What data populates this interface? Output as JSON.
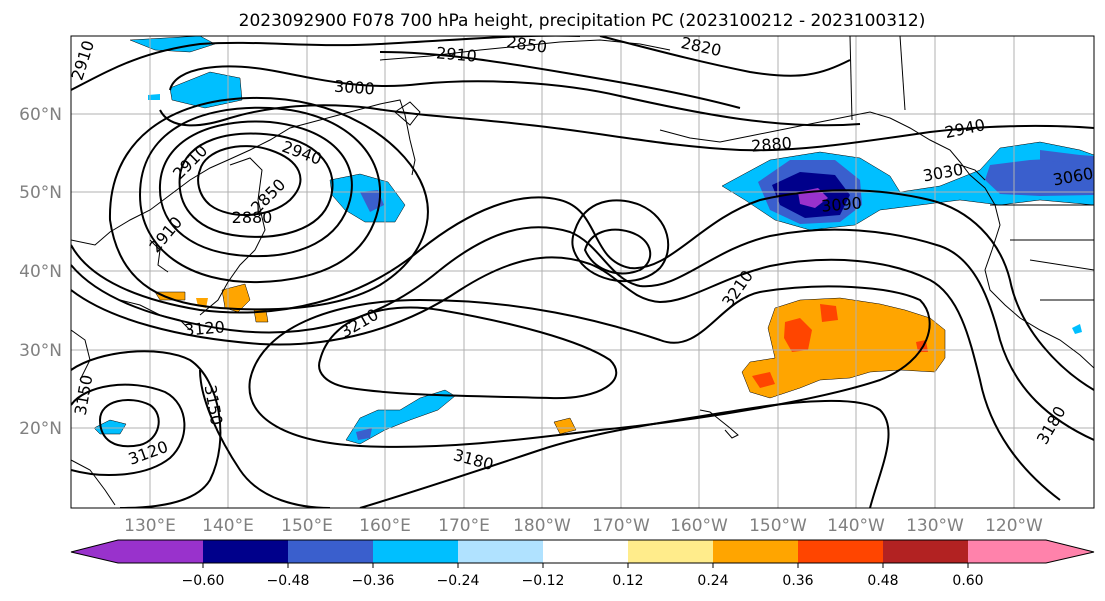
{
  "title": "2023092900 F078 700 hPa height, precipitation PC (2023100212 - 2023100312)",
  "lon_labels": [
    "130°E",
    "140°E",
    "150°E",
    "160°E",
    "170°E",
    "180°W",
    "170°W",
    "160°W",
    "150°W",
    "140°W",
    "130°W",
    "120°W"
  ],
  "lat_labels": [
    "60°N",
    "50°N",
    "40°N",
    "30°N",
    "20°N"
  ],
  "colorbar": {
    "colors": [
      "#9932cc",
      "#00008b",
      "#3a5fcd",
      "#00bfff",
      "#b0e2ff",
      "#ffffff",
      "#ffec8b",
      "#ffa500",
      "#ff4500",
      "#b22222",
      "#ff82ab"
    ],
    "tick_labels": [
      "−0.60",
      "−0.48",
      "−0.36",
      "−0.24",
      "−0.12",
      "0.12",
      "0.24",
      "0.36",
      "0.48",
      "0.60"
    ]
  },
  "contour_labels": [
    "2910",
    "2850",
    "2820",
    "2910",
    "3000",
    "2880",
    "2940",
    "2910",
    "2940",
    "2850",
    "2880",
    "3060",
    "3030",
    "3090",
    "2910",
    "3210",
    "3120",
    "3210",
    "3150",
    "3150",
    "3120",
    "3180",
    "3180"
  ]
}
